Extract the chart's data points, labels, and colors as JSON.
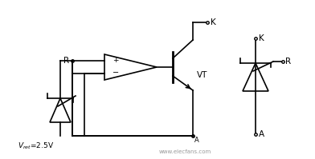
{
  "bg_color": "#ffffff",
  "line_color": "#000000",
  "line_width": 1.2,
  "fig_width": 3.92,
  "fig_height": 1.99,
  "dpi": 100,
  "labels": {
    "R_left": "R",
    "VT": "VT",
    "K_top": "K",
    "A_bottom": "A",
    "K_right": "K",
    "R_right": "R",
    "A_right": "A",
    "watermark": "www.elecfans.com"
  },
  "watermark_color": "#999999",
  "watermark_fontsize": 5.0
}
